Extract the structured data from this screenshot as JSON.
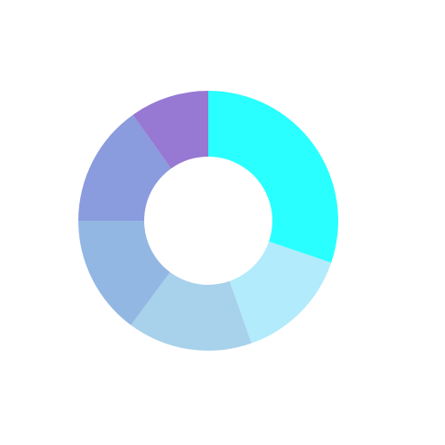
{
  "chart_data": {
    "type": "pie",
    "variant": "donut",
    "legend": "none",
    "slices": [
      {
        "value": 30.25,
        "color": "#29FFFF"
      },
      {
        "value": 14.35,
        "color": "#B2EBFB"
      },
      {
        "value": 15.55,
        "color": "#A8D1EB"
      },
      {
        "value": 14.85,
        "color": "#93B7E3"
      },
      {
        "value": 15.15,
        "color": "#8A9BDE"
      },
      {
        "value": 9.85,
        "color": "#9779D3"
      }
    ]
  }
}
